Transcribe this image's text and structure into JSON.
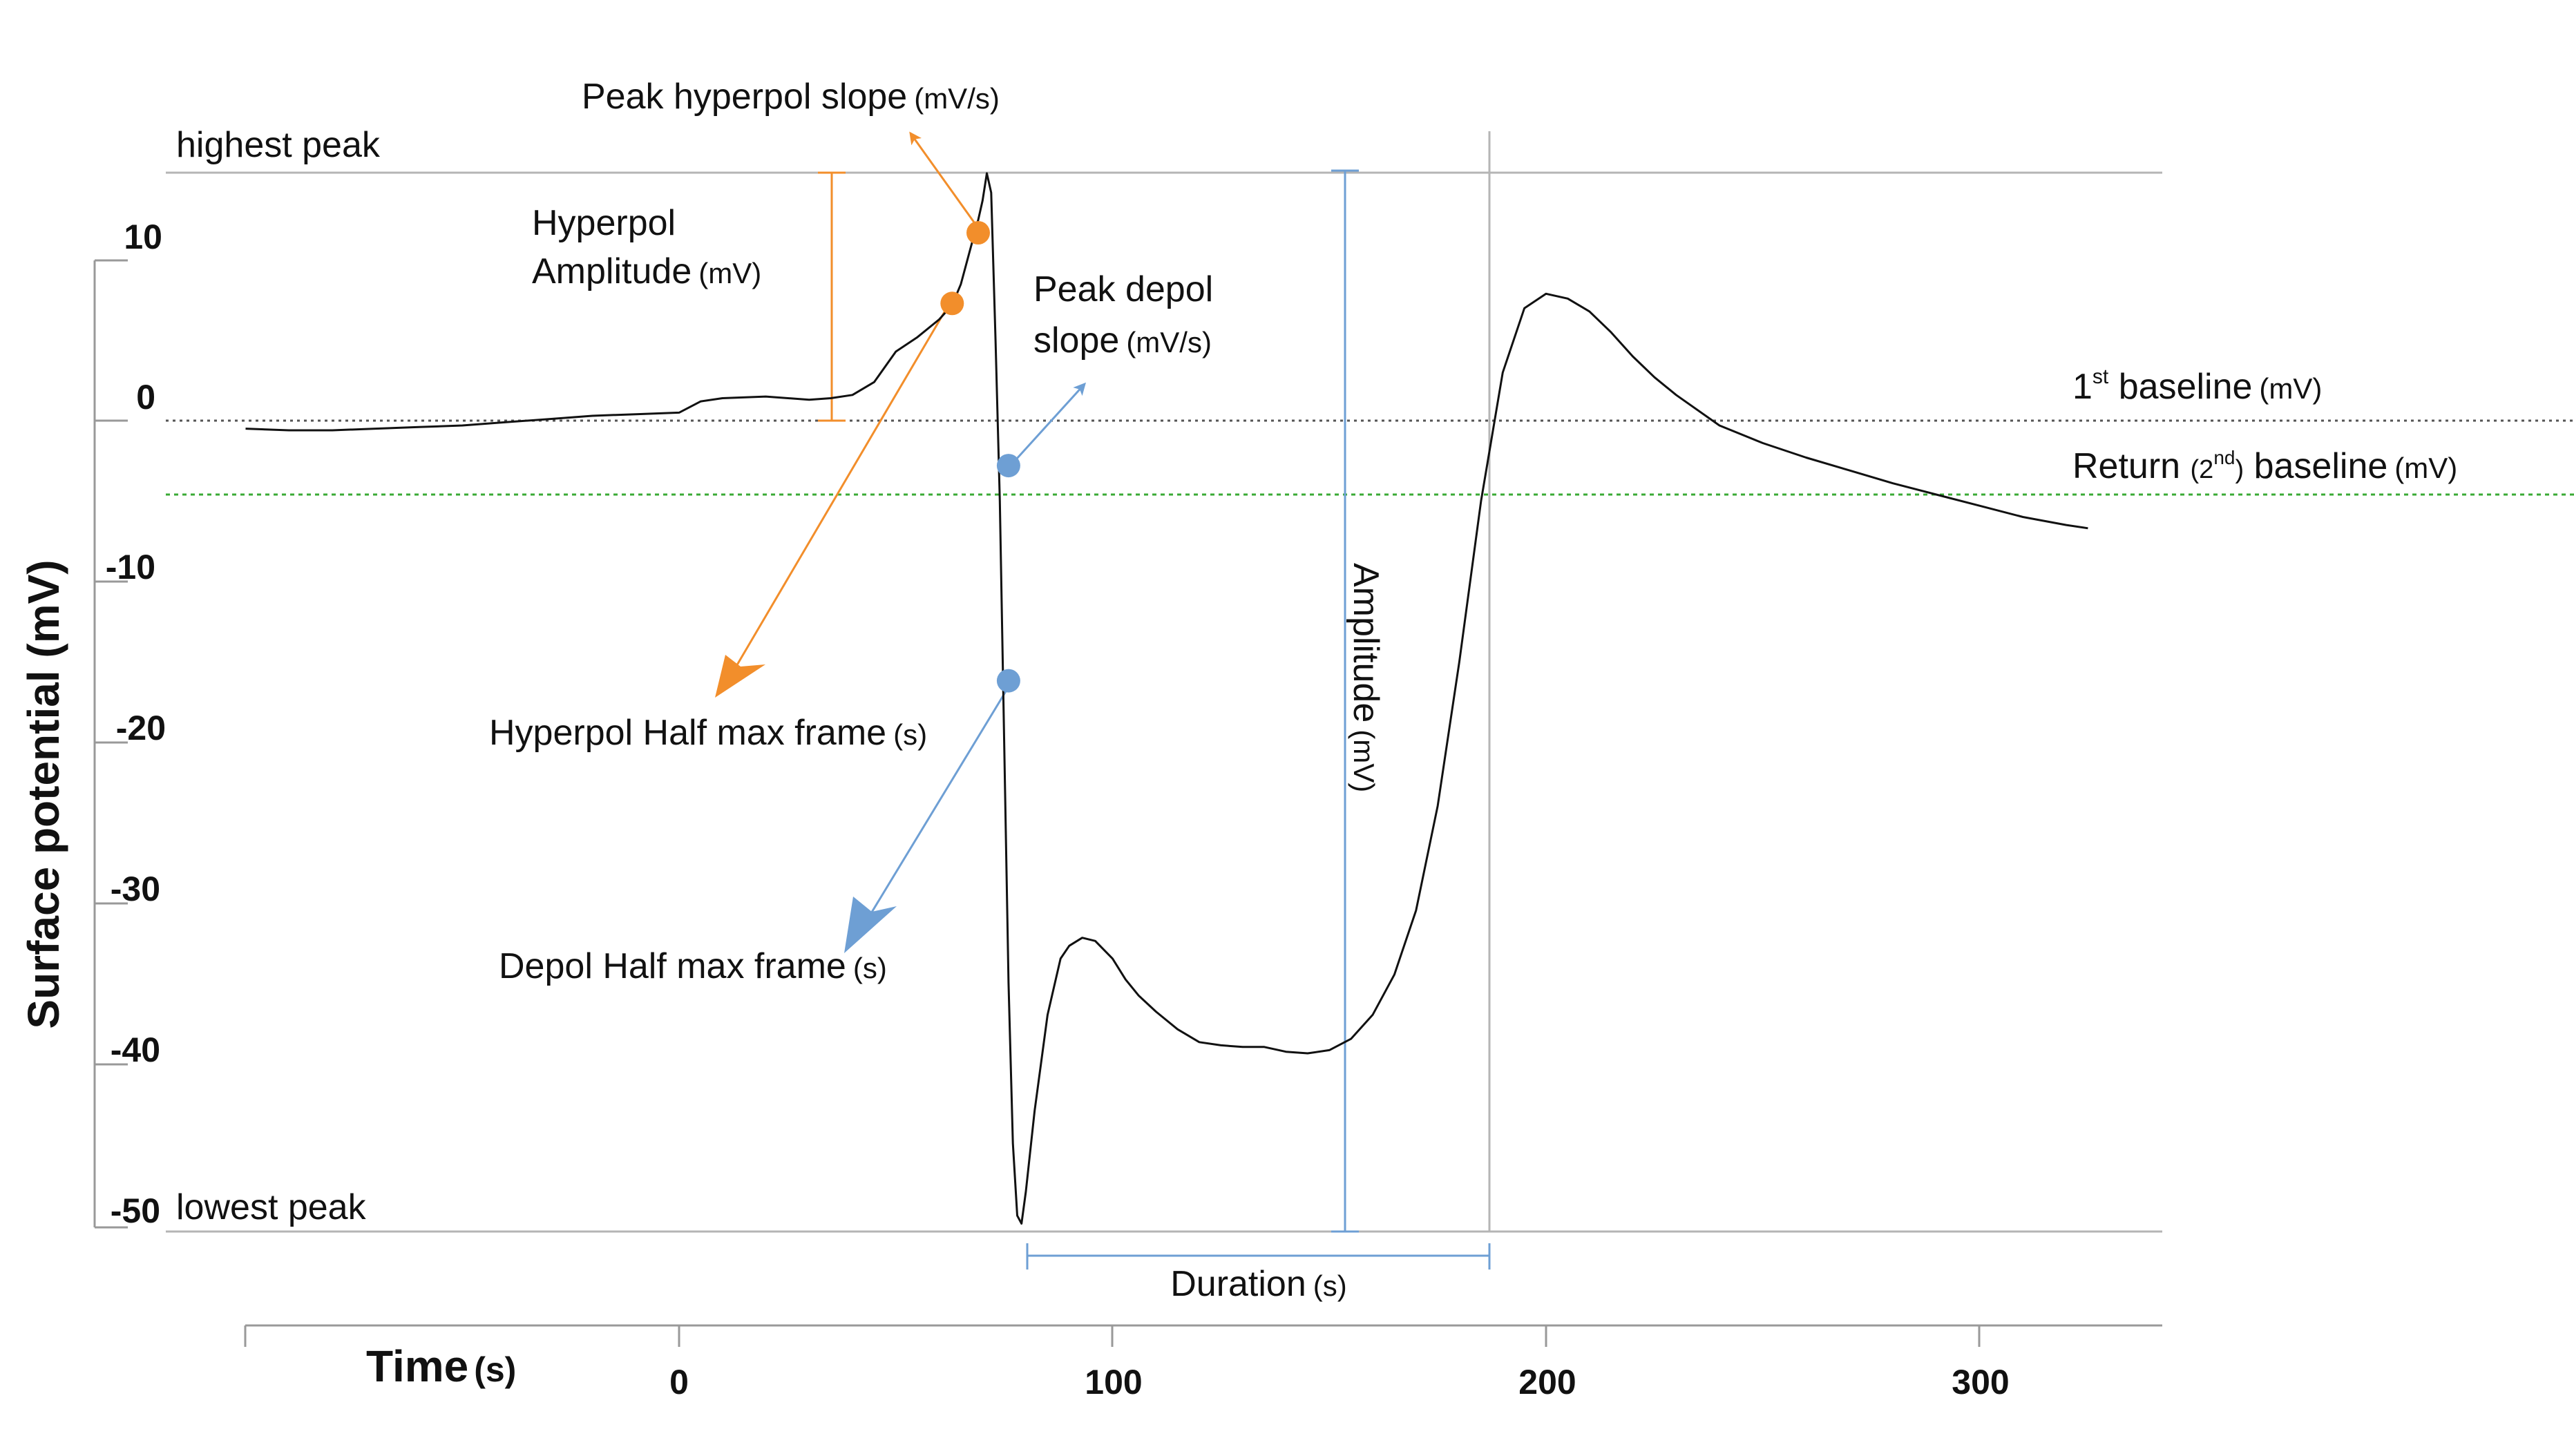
{
  "chart_data": {
    "type": "line",
    "xlabel": "Time",
    "xlabel_unit": "(s)",
    "ylabel": "Surface potential (mV)",
    "x_ticks": [
      "0",
      "100",
      "200",
      "300"
    ],
    "y_ticks": [
      "10",
      "0",
      "-10",
      "-20",
      "-30",
      "-40",
      "-50"
    ],
    "xlim": [
      -100,
      330
    ],
    "ylim": [
      -50,
      12
    ],
    "grid": false,
    "series": [
      {
        "color": "#111111",
        "x": [
          -100,
          -90,
          -80,
          -70,
          -60,
          -50,
          -40,
          -30,
          -20,
          -10,
          0,
          5,
          10,
          20,
          30,
          35,
          40,
          45,
          50,
          55,
          60,
          63,
          65,
          67,
          69,
          70,
          71,
          72,
          73,
          74,
          75,
          76,
          77,
          78,
          79,
          80,
          82,
          85,
          88,
          90,
          93,
          96,
          100,
          103,
          106,
          110,
          115,
          120,
          125,
          130,
          135,
          140,
          145,
          150,
          155,
          160,
          165,
          170,
          175,
          180,
          185,
          190,
          195,
          200,
          205,
          210,
          215,
          220,
          225,
          230,
          240,
          250,
          260,
          270,
          280,
          290,
          300,
          310,
          320,
          325
        ],
        "y": [
          -0.5,
          -0.6,
          -0.6,
          -0.5,
          -0.4,
          -0.3,
          -0.1,
          0.1,
          0.3,
          0.4,
          0.5,
          1.2,
          1.4,
          1.5,
          1.3,
          1.4,
          1.6,
          2.4,
          4.3,
          5.2,
          6.3,
          7.2,
          8.5,
          10.5,
          12.5,
          13.7,
          15.4,
          14.2,
          5.0,
          -5.0,
          -20.0,
          -35.0,
          -45.0,
          -49.5,
          -50.0,
          -48.0,
          -43.0,
          -37.0,
          -33.5,
          -32.7,
          -32.2,
          -32.4,
          -33.5,
          -34.8,
          -35.8,
          -36.8,
          -37.9,
          -38.7,
          -38.9,
          -39.0,
          -39.0,
          -39.3,
          -39.4,
          -39.2,
          -38.5,
          -37.0,
          -34.5,
          -30.5,
          -24.0,
          -15.0,
          -5.0,
          3.0,
          7.0,
          7.9,
          7.6,
          6.8,
          5.5,
          4.0,
          2.7,
          1.6,
          -0.3,
          -1.4,
          -2.3,
          -3.1,
          -3.9,
          -4.6,
          -5.3,
          -6.0,
          -6.5,
          -6.7
        ]
      }
    ],
    "reference_lines": [
      {
        "value": 15.5,
        "label": "highest peak",
        "color": "#aaaaaa"
      },
      {
        "value": -50.2,
        "label": "lowest peak",
        "color": "#aaaaaa"
      },
      {
        "value": 0,
        "label": "1st baseline (mV)",
        "color": "#666666"
      },
      {
        "value": -4.5,
        "label": "Return (2nd) baseline (mV)",
        "color": "#3aaa35"
      }
    ],
    "marker_points": [
      {
        "x": 69,
        "y": 11.7,
        "color": "#f28e2b"
      },
      {
        "x": 63,
        "y": 7.3,
        "color": "#f28e2b"
      },
      {
        "x": 76,
        "y": -2.8,
        "color": "#6e9fd4"
      },
      {
        "x": 76,
        "y": -16.2,
        "color": "#6e9fd4"
      }
    ],
    "annotations": {
      "highest_peak": "highest peak",
      "lowest_peak": "lowest peak",
      "hyperpol_amplitude_line1": "Hyperpol",
      "hyperpol_amplitude_line2": "Amplitude",
      "hyperpol_amplitude_unit": "(mV)",
      "peak_hyperpol_slope": "Peak hyperpol slope",
      "peak_hyperpol_slope_unit": "(mV/s)",
      "peak_depol_slope_line1": "Peak depol",
      "peak_depol_slope_line2": "slope",
      "peak_depol_slope_unit": "(mV/s)",
      "hyperpol_half_max": "Hyperpol Half max frame",
      "hyperpol_half_max_unit": "(s)",
      "depol_half_max": "Depol Half max frame",
      "depol_half_max_unit": "(s)",
      "amplitude": "Amplitude",
      "amplitude_unit": "(mV)",
      "duration": "Duration",
      "duration_unit": "(s)",
      "first_baseline_prefix": "1",
      "first_baseline_sup": "st",
      "first_baseline_suffix": " baseline",
      "first_baseline_unit": "(mV)",
      "return_baseline_prefix": "Return ",
      "return_baseline_sub": "(2",
      "return_baseline_sup": "nd",
      "return_baseline_close": ")",
      "return_baseline_suffix": " baseline",
      "return_baseline_unit": "(mV)"
    },
    "colors": {
      "trace": "#111111",
      "hyperpol": "#f28e2b",
      "depol": "#6e9fd4",
      "return_baseline": "#3aaa35",
      "reference": "#aaaaaa"
    }
  }
}
